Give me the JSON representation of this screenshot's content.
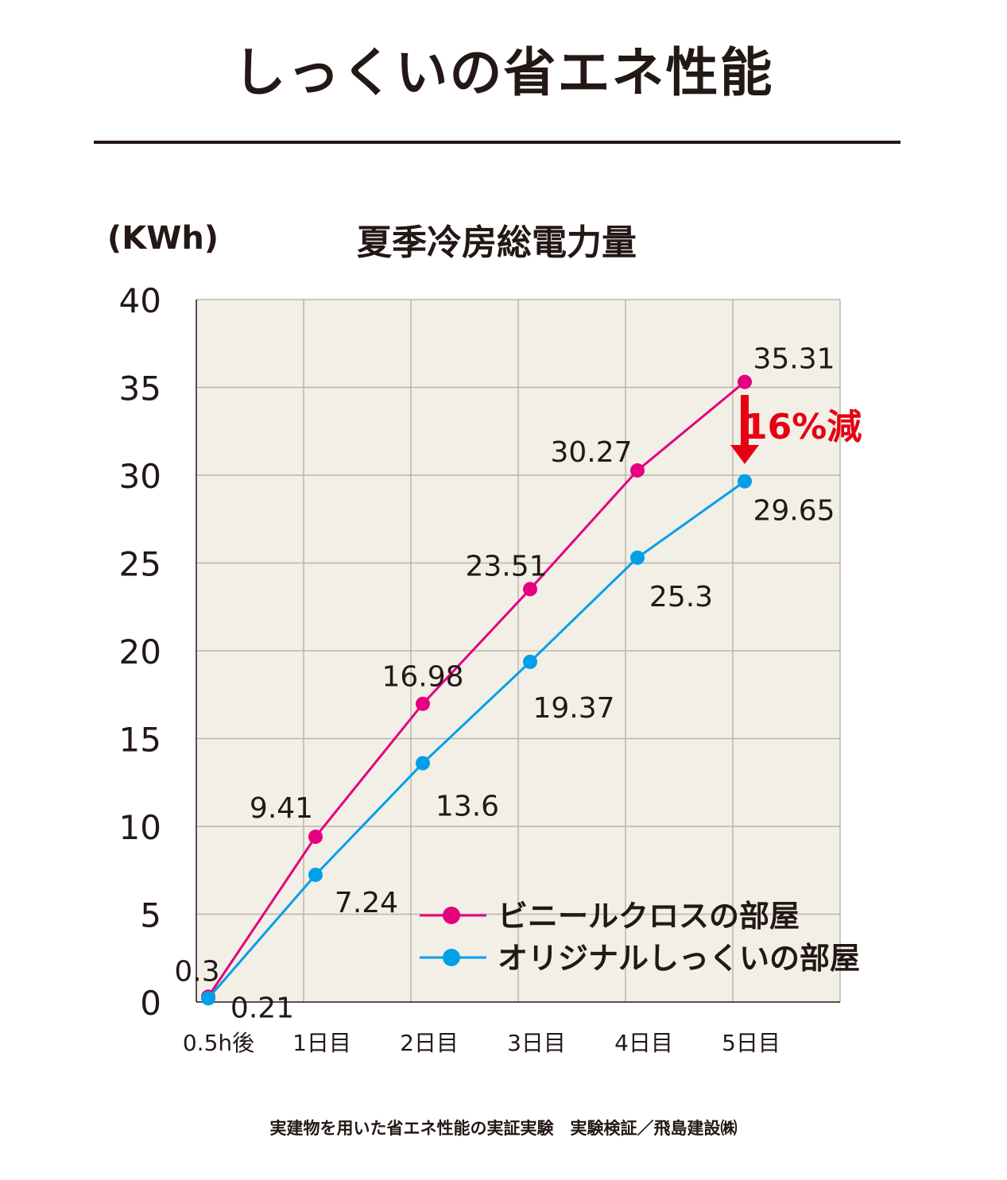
{
  "page": {
    "title": "しっくいの省エネ性能",
    "footnote": "実建物を用いた省エネ性能の実証実験　実験検証／飛島建設㈱"
  },
  "colors": {
    "vinyl": "#e4007f",
    "shikkui": "#00a0e9",
    "plot_bg": "#f2efe7",
    "grid": "#b9b5ac",
    "arrow": "#e60012"
  },
  "chart_data": {
    "type": "line",
    "title": "夏季冷房総電力量",
    "ylabel": "(KWh)",
    "xlabel": "",
    "categories": [
      "0.5h後",
      "1日目",
      "2日目",
      "3日目",
      "4日目",
      "5日目"
    ],
    "ylim": [
      0,
      40
    ],
    "yticks": [
      "0",
      "5",
      "10",
      "15",
      "20",
      "25",
      "30",
      "35",
      "40"
    ],
    "grid": true,
    "legend_position": "bottom-right",
    "series": [
      {
        "name": "ビニールクロスの部屋",
        "values": [
          0.3,
          9.41,
          16.98,
          23.51,
          30.27,
          35.31
        ],
        "labels": [
          "0.3",
          "9.41",
          "16.98",
          "23.51",
          "30.27",
          "35.31"
        ]
      },
      {
        "name": "オリジナルしっくいの部屋",
        "values": [
          0.21,
          7.24,
          13.6,
          19.37,
          25.3,
          29.65
        ],
        "labels": [
          "0.21",
          "7.24",
          "13.6",
          "19.37",
          "25.3",
          "29.65"
        ]
      }
    ],
    "annotation": {
      "text": "16%減",
      "category_index": 5
    }
  }
}
